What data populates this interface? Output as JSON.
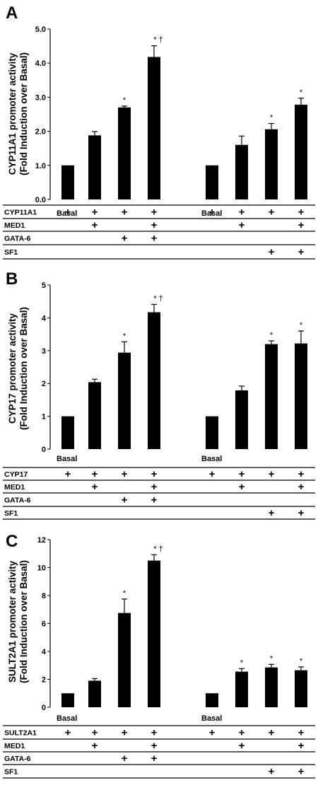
{
  "chart_data": [
    {
      "type": "bar",
      "panel_label": "A",
      "ylabel_line1": "CYP11A1 promoter activity",
      "ylabel_line2": "(Fold Induction over Basal)",
      "ylim": [
        0,
        5
      ],
      "ytick_labels": [
        "0.0",
        "1.0",
        "2.0",
        "3.0",
        "4.0",
        "5.0"
      ],
      "grid": false,
      "values": [
        1.0,
        1.88,
        2.7,
        4.18,
        1.0,
        1.6,
        2.06,
        2.78
      ],
      "errors": [
        0.0,
        0.11,
        0.04,
        0.33,
        0.0,
        0.26,
        0.17,
        0.19
      ],
      "annotations": [
        "",
        "",
        "*",
        "* †",
        "",
        "",
        "*",
        "*"
      ],
      "group_labels": [
        "Basal",
        "Basal"
      ],
      "treatment_rows": [
        {
          "label": "CYP11A1",
          "marks": [
            "+",
            "+",
            "+",
            "+",
            "+",
            "+",
            "+",
            "+"
          ]
        },
        {
          "label": "MED1",
          "marks": [
            "",
            "+",
            "",
            "+",
            "",
            "+",
            "",
            "+"
          ]
        },
        {
          "label": "GATA-6",
          "marks": [
            "",
            "",
            "+",
            "+",
            "",
            "",
            "",
            ""
          ]
        },
        {
          "label": "SF1",
          "marks": [
            "",
            "",
            "",
            "",
            "",
            "",
            "+",
            "+"
          ]
        }
      ]
    },
    {
      "type": "bar",
      "panel_label": "B",
      "ylabel_line1": "CYP17 promoter activity",
      "ylabel_line2": "(Fold Induction over Basal)",
      "ylim": [
        0,
        5
      ],
      "ytick_labels": [
        "0",
        "1",
        "2",
        "3",
        "4",
        "5"
      ],
      "grid": false,
      "values": [
        1.0,
        2.04,
        2.94,
        4.17,
        1.0,
        1.79,
        3.2,
        3.22
      ],
      "errors": [
        0.0,
        0.09,
        0.33,
        0.24,
        0.0,
        0.13,
        0.1,
        0.38
      ],
      "annotations": [
        "",
        "",
        "*",
        "* †",
        "",
        "",
        "*",
        "*"
      ],
      "group_labels": [
        "Basal",
        "Basal"
      ],
      "treatment_rows": [
        {
          "label": "CYP17",
          "marks": [
            "+",
            "+",
            "+",
            "+",
            "+",
            "+",
            "+",
            "+"
          ]
        },
        {
          "label": "MED1",
          "marks": [
            "",
            "+",
            "",
            "+",
            "",
            "+",
            "",
            "+"
          ]
        },
        {
          "label": "GATA-6",
          "marks": [
            "",
            "",
            "+",
            "+",
            "",
            "",
            "",
            ""
          ]
        },
        {
          "label": "SF1",
          "marks": [
            "",
            "",
            "",
            "",
            "",
            "",
            "+",
            "+"
          ]
        }
      ]
    },
    {
      "type": "bar",
      "panel_label": "C",
      "ylabel_line1": "SULT2A1 promoter activity",
      "ylabel_line2": "(Fold Induction over Basal)",
      "ylim": [
        0,
        12
      ],
      "ytick_labels": [
        "0",
        "2",
        "4",
        "6",
        "8",
        "10",
        "12"
      ],
      "grid": false,
      "values": [
        1.0,
        1.9,
        6.75,
        10.5,
        1.0,
        2.55,
        2.85,
        2.65
      ],
      "errors": [
        0.0,
        0.15,
        1.0,
        0.42,
        0.0,
        0.22,
        0.22,
        0.24
      ],
      "annotations": [
        "",
        "",
        "*",
        "* †",
        "",
        "*",
        "*",
        "*"
      ],
      "group_labels": [
        "Basal",
        "Basal"
      ],
      "treatment_rows": [
        {
          "label": "SULT2A1",
          "marks": [
            "+",
            "+",
            "+",
            "+",
            "+",
            "+",
            "+",
            "+"
          ]
        },
        {
          "label": "MED1",
          "marks": [
            "",
            "+",
            "",
            "+",
            "",
            "+",
            "",
            "+"
          ]
        },
        {
          "label": "GATA-6",
          "marks": [
            "",
            "",
            "+",
            "+",
            "",
            "",
            "",
            ""
          ]
        },
        {
          "label": "SF1",
          "marks": [
            "",
            "",
            "",
            "",
            "",
            "",
            "+",
            "+"
          ]
        }
      ]
    }
  ]
}
